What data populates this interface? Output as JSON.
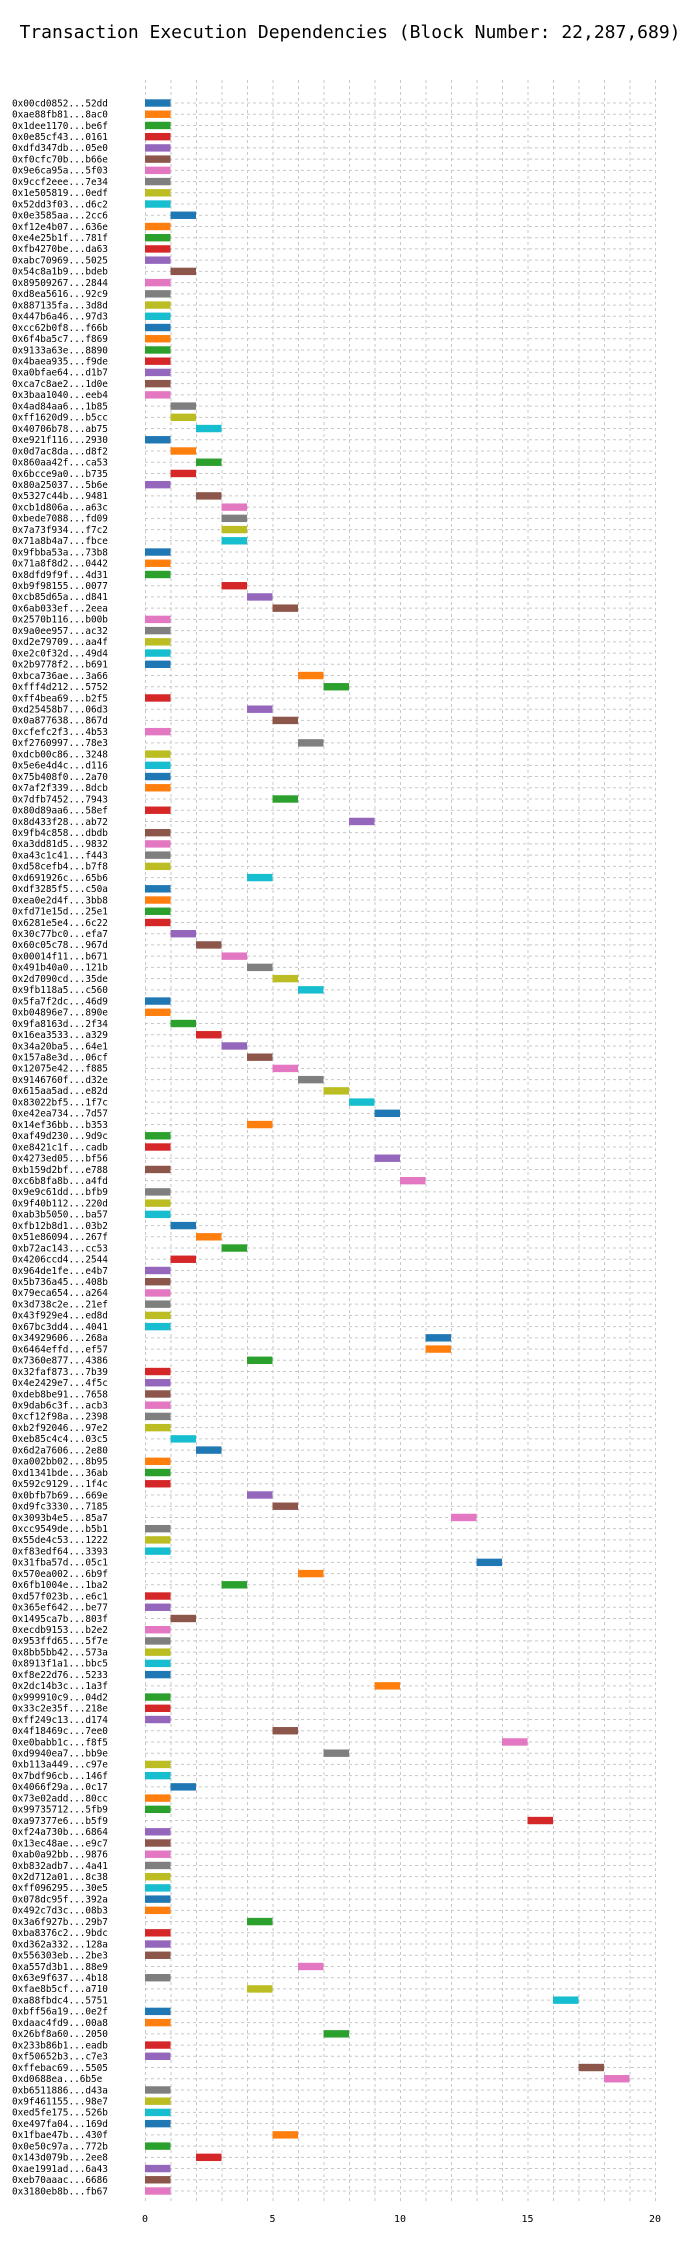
{
  "chart_data": {
    "type": "bar",
    "orientation": "horizontal",
    "title": "Transaction Execution Dependencies (Block Number: 22,287,689)",
    "xlabel": "",
    "ylabel": "",
    "xlim": [
      0,
      20
    ],
    "xticks": [
      "0",
      "5",
      "10",
      "15",
      "20"
    ],
    "grid": true,
    "legend": "none",
    "colors": [
      "#1f77b4",
      "#ff7f0e",
      "#2ca02c",
      "#d62728",
      "#9467bd",
      "#8c564b",
      "#e377c2",
      "#7f7f7f",
      "#bcbd22",
      "#17becf"
    ],
    "bars": [
      {
        "label": "0x00cd0852...52dd",
        "start": 0,
        "end": 1
      },
      {
        "label": "0xae88fb81...8ac0",
        "start": 0,
        "end": 1
      },
      {
        "label": "0x1dee1170...be6f",
        "start": 0,
        "end": 1
      },
      {
        "label": "0x0e85cf43...0161",
        "start": 0,
        "end": 1
      },
      {
        "label": "0xdfd347db...05e0",
        "start": 0,
        "end": 1
      },
      {
        "label": "0xf0cfc70b...b66e",
        "start": 0,
        "end": 1
      },
      {
        "label": "0x9e6ca95a...5f03",
        "start": 0,
        "end": 1
      },
      {
        "label": "0x9ccf2eee...7e34",
        "start": 0,
        "end": 1
      },
      {
        "label": "0x1e505819...0edf",
        "start": 0,
        "end": 1
      },
      {
        "label": "0x52dd3f03...d6c2",
        "start": 0,
        "end": 1
      },
      {
        "label": "0x0e3585aa...2cc6",
        "start": 1,
        "end": 2
      },
      {
        "label": "0xf12e4b07...636e",
        "start": 0,
        "end": 1
      },
      {
        "label": "0xe4e25b1f...781f",
        "start": 0,
        "end": 1
      },
      {
        "label": "0xfb4270be...da63",
        "start": 0,
        "end": 1
      },
      {
        "label": "0xabc70969...5025",
        "start": 0,
        "end": 1
      },
      {
        "label": "0x54c8a1b9...bdeb",
        "start": 1,
        "end": 2
      },
      {
        "label": "0x89509267...2844",
        "start": 0,
        "end": 1
      },
      {
        "label": "0xd8ea5616...92c9",
        "start": 0,
        "end": 1
      },
      {
        "label": "0x887135fa...3d8d",
        "start": 0,
        "end": 1
      },
      {
        "label": "0x447b6a46...97d3",
        "start": 0,
        "end": 1
      },
      {
        "label": "0xcc62b0f8...f66b",
        "start": 0,
        "end": 1
      },
      {
        "label": "0x6f4ba5c7...f869",
        "start": 0,
        "end": 1
      },
      {
        "label": "0x9133a63e...8890",
        "start": 0,
        "end": 1
      },
      {
        "label": "0x4baea935...f9de",
        "start": 0,
        "end": 1
      },
      {
        "label": "0xa0bfae64...d1b7",
        "start": 0,
        "end": 1
      },
      {
        "label": "0xca7c8ae2...1d0e",
        "start": 0,
        "end": 1
      },
      {
        "label": "0x3baa1040...eeb4",
        "start": 0,
        "end": 1
      },
      {
        "label": "0x4ad84aa6...1b85",
        "start": 1,
        "end": 2
      },
      {
        "label": "0xff1620d9...b5cc",
        "start": 1,
        "end": 2
      },
      {
        "label": "0x40706b78...ab75",
        "start": 2,
        "end": 3
      },
      {
        "label": "0xe921f116...2930",
        "start": 0,
        "end": 1
      },
      {
        "label": "0x0d7ac8da...d8f2",
        "start": 1,
        "end": 2
      },
      {
        "label": "0x860aa42f...ca53",
        "start": 2,
        "end": 3
      },
      {
        "label": "0x6bcce9a0...b735",
        "start": 1,
        "end": 2
      },
      {
        "label": "0x80a25037...5b6e",
        "start": 0,
        "end": 1
      },
      {
        "label": "0x5327c44b...9481",
        "start": 2,
        "end": 3
      },
      {
        "label": "0xcb1d806a...a63c",
        "start": 3,
        "end": 4
      },
      {
        "label": "0xbede7088...fd09",
        "start": 3,
        "end": 4
      },
      {
        "label": "0x7a73f934...f7c2",
        "start": 3,
        "end": 4
      },
      {
        "label": "0x71a8b4a7...fbce",
        "start": 3,
        "end": 4
      },
      {
        "label": "0x9fbba53a...73b8",
        "start": 0,
        "end": 1
      },
      {
        "label": "0x71a8f8d2...0442",
        "start": 0,
        "end": 1
      },
      {
        "label": "0x8dfd9f9f...4d31",
        "start": 0,
        "end": 1
      },
      {
        "label": "0xb9f98155...0077",
        "start": 3,
        "end": 4
      },
      {
        "label": "0xcb85d65a...d841",
        "start": 4,
        "end": 5
      },
      {
        "label": "0x6ab033ef...2eea",
        "start": 5,
        "end": 6
      },
      {
        "label": "0x2570b116...b00b",
        "start": 0,
        "end": 1
      },
      {
        "label": "0x9a0ee957...ac32",
        "start": 0,
        "end": 1
      },
      {
        "label": "0xd2e79709...aa4f",
        "start": 0,
        "end": 1
      },
      {
        "label": "0xe2c0f32d...49d4",
        "start": 0,
        "end": 1
      },
      {
        "label": "0x2b9778f2...b691",
        "start": 0,
        "end": 1
      },
      {
        "label": "0xbca736ae...3a66",
        "start": 6,
        "end": 7
      },
      {
        "label": "0xfff4d212...5752",
        "start": 7,
        "end": 8
      },
      {
        "label": "0xff4bea69...b2f5",
        "start": 0,
        "end": 1
      },
      {
        "label": "0xd25458b7...06d3",
        "start": 4,
        "end": 5
      },
      {
        "label": "0x0a877638...867d",
        "start": 5,
        "end": 6
      },
      {
        "label": "0xcfefc2f3...4b53",
        "start": 0,
        "end": 1
      },
      {
        "label": "0xf2760997...78e3",
        "start": 6,
        "end": 7
      },
      {
        "label": "0xdcb00c86...3248",
        "start": 0,
        "end": 1
      },
      {
        "label": "0x5e6e4d4c...d116",
        "start": 0,
        "end": 1
      },
      {
        "label": "0x75b408f0...2a70",
        "start": 0,
        "end": 1
      },
      {
        "label": "0x7af2f339...8dcb",
        "start": 0,
        "end": 1
      },
      {
        "label": "0x7dfb7452...7943",
        "start": 5,
        "end": 6
      },
      {
        "label": "0x80d89aa6...58ef",
        "start": 0,
        "end": 1
      },
      {
        "label": "0x8d433f28...ab72",
        "start": 8,
        "end": 9
      },
      {
        "label": "0x9fb4c858...dbdb",
        "start": 0,
        "end": 1
      },
      {
        "label": "0xa3dd81d5...9832",
        "start": 0,
        "end": 1
      },
      {
        "label": "0xa43c1c41...f443",
        "start": 0,
        "end": 1
      },
      {
        "label": "0xd58cefb4...b7f8",
        "start": 0,
        "end": 1
      },
      {
        "label": "0xd691926c...65b6",
        "start": 4,
        "end": 5
      },
      {
        "label": "0xdf3285f5...c50a",
        "start": 0,
        "end": 1
      },
      {
        "label": "0xea0e2d4f...3bb8",
        "start": 0,
        "end": 1
      },
      {
        "label": "0xfd71e15d...25e1",
        "start": 0,
        "end": 1
      },
      {
        "label": "0x6281e5e4...6c22",
        "start": 0,
        "end": 1
      },
      {
        "label": "0x30c77bc0...efa7",
        "start": 1,
        "end": 2
      },
      {
        "label": "0x60c05c78...967d",
        "start": 2,
        "end": 3
      },
      {
        "label": "0x00014f11...b671",
        "start": 3,
        "end": 4
      },
      {
        "label": "0x491b40a0...121b",
        "start": 4,
        "end": 5
      },
      {
        "label": "0x2d7090cd...35de",
        "start": 5,
        "end": 6
      },
      {
        "label": "0x9fb118a5...c560",
        "start": 6,
        "end": 7
      },
      {
        "label": "0x5fa7f2dc...46d9",
        "start": 0,
        "end": 1
      },
      {
        "label": "0xb04896e7...890e",
        "start": 0,
        "end": 1
      },
      {
        "label": "0x9fa8163d...2f34",
        "start": 1,
        "end": 2
      },
      {
        "label": "0x16ea3533...a329",
        "start": 2,
        "end": 3
      },
      {
        "label": "0x34a20ba5...64e1",
        "start": 3,
        "end": 4
      },
      {
        "label": "0x157a8e3d...06cf",
        "start": 4,
        "end": 5
      },
      {
        "label": "0x12075e42...f885",
        "start": 5,
        "end": 6
      },
      {
        "label": "0x9146760f...d32e",
        "start": 6,
        "end": 7
      },
      {
        "label": "0x615aa5ad...e82d",
        "start": 7,
        "end": 8
      },
      {
        "label": "0x83022bf5...1f7c",
        "start": 8,
        "end": 9
      },
      {
        "label": "0xe42ea734...7d57",
        "start": 9,
        "end": 10
      },
      {
        "label": "0x14ef36bb...b353",
        "start": 4,
        "end": 5
      },
      {
        "label": "0xaf49d230...9d9c",
        "start": 0,
        "end": 1
      },
      {
        "label": "0xe8421c1f...cadb",
        "start": 0,
        "end": 1
      },
      {
        "label": "0x4273ed05...bf56",
        "start": 9,
        "end": 10
      },
      {
        "label": "0xb159d2bf...e788",
        "start": 0,
        "end": 1
      },
      {
        "label": "0xc6b8fa8b...a4fd",
        "start": 10,
        "end": 11
      },
      {
        "label": "0x9e9c61dd...bfb9",
        "start": 0,
        "end": 1
      },
      {
        "label": "0x9f40b112...220d",
        "start": 0,
        "end": 1
      },
      {
        "label": "0xab3b5050...ba57",
        "start": 0,
        "end": 1
      },
      {
        "label": "0xfb12b8d1...03b2",
        "start": 1,
        "end": 2
      },
      {
        "label": "0x51e86094...267f",
        "start": 2,
        "end": 3
      },
      {
        "label": "0xb72ac143...cc53",
        "start": 3,
        "end": 4
      },
      {
        "label": "0x4206ccd4...2544",
        "start": 1,
        "end": 2
      },
      {
        "label": "0x964de1fe...e4b7",
        "start": 0,
        "end": 1
      },
      {
        "label": "0x5b736a45...408b",
        "start": 0,
        "end": 1
      },
      {
        "label": "0x79eca654...a264",
        "start": 0,
        "end": 1
      },
      {
        "label": "0x3d738c2e...21ef",
        "start": 0,
        "end": 1
      },
      {
        "label": "0x43f929e4...ed8d",
        "start": 0,
        "end": 1
      },
      {
        "label": "0x67bc3dd4...4041",
        "start": 0,
        "end": 1
      },
      {
        "label": "0x34929606...268a",
        "start": 11,
        "end": 12
      },
      {
        "label": "0x6464effd...ef57",
        "start": 11,
        "end": 12
      },
      {
        "label": "0x7360e877...4386",
        "start": 4,
        "end": 5
      },
      {
        "label": "0x32faf873...7b39",
        "start": 0,
        "end": 1
      },
      {
        "label": "0x4e2429e7...4f5c",
        "start": 0,
        "end": 1
      },
      {
        "label": "0xdeb8be91...7658",
        "start": 0,
        "end": 1
      },
      {
        "label": "0x9dab6c3f...acb3",
        "start": 0,
        "end": 1
      },
      {
        "label": "0xcf12f98a...2398",
        "start": 0,
        "end": 1
      },
      {
        "label": "0xb2f92046...97e2",
        "start": 0,
        "end": 1
      },
      {
        "label": "0xeb85c4c4...03c5",
        "start": 1,
        "end": 2
      },
      {
        "label": "0x6d2a7606...2e80",
        "start": 2,
        "end": 3
      },
      {
        "label": "0xa002bb02...8b95",
        "start": 0,
        "end": 1
      },
      {
        "label": "0xd1341bde...36ab",
        "start": 0,
        "end": 1
      },
      {
        "label": "0x592c9129...1f4c",
        "start": 0,
        "end": 1
      },
      {
        "label": "0x0bfb7b69...669e",
        "start": 4,
        "end": 5
      },
      {
        "label": "0xd9fc3330...7185",
        "start": 5,
        "end": 6
      },
      {
        "label": "0x3093b4e5...85a7",
        "start": 12,
        "end": 13
      },
      {
        "label": "0xcc9549de...b5b1",
        "start": 0,
        "end": 1
      },
      {
        "label": "0x55de4c53...1222",
        "start": 0,
        "end": 1
      },
      {
        "label": "0xf83edf64...3393",
        "start": 0,
        "end": 1
      },
      {
        "label": "0x31fba57d...05c1",
        "start": 13,
        "end": 14
      },
      {
        "label": "0x570ea002...6b9f",
        "start": 6,
        "end": 7
      },
      {
        "label": "0x6fb1004e...1ba2",
        "start": 3,
        "end": 4
      },
      {
        "label": "0xd57f023b...e6c1",
        "start": 0,
        "end": 1
      },
      {
        "label": "0x365ef642...be77",
        "start": 0,
        "end": 1
      },
      {
        "label": "0x1495ca7b...803f",
        "start": 1,
        "end": 2
      },
      {
        "label": "0xecdb9153...b2e2",
        "start": 0,
        "end": 1
      },
      {
        "label": "0x953ffd65...5f7e",
        "start": 0,
        "end": 1
      },
      {
        "label": "0x8bb5bb42...573a",
        "start": 0,
        "end": 1
      },
      {
        "label": "0x8913f1a1...bbc5",
        "start": 0,
        "end": 1
      },
      {
        "label": "0xf8e22d76...5233",
        "start": 0,
        "end": 1
      },
      {
        "label": "0x2dc14b3c...1a3f",
        "start": 9,
        "end": 10
      },
      {
        "label": "0x999910c9...04d2",
        "start": 0,
        "end": 1
      },
      {
        "label": "0x33c2e35f...218e",
        "start": 0,
        "end": 1
      },
      {
        "label": "0xff249c13...d174",
        "start": 0,
        "end": 1
      },
      {
        "label": "0x4f18469c...7ee0",
        "start": 5,
        "end": 6
      },
      {
        "label": "0xe0babb1c...f8f5",
        "start": 14,
        "end": 15
      },
      {
        "label": "0xd9940ea7...bb9e",
        "start": 7,
        "end": 8
      },
      {
        "label": "0xb113a449...c97e",
        "start": 0,
        "end": 1
      },
      {
        "label": "0x7bdf96cb...146f",
        "start": 0,
        "end": 1
      },
      {
        "label": "0x4066f29a...0c17",
        "start": 1,
        "end": 2
      },
      {
        "label": "0x73e02add...80cc",
        "start": 0,
        "end": 1
      },
      {
        "label": "0x99735712...5fb9",
        "start": 0,
        "end": 1
      },
      {
        "label": "0xa97377e6...b5f9",
        "start": 15,
        "end": 16
      },
      {
        "label": "0xf24a730b...6864",
        "start": 0,
        "end": 1
      },
      {
        "label": "0x13ec48ae...e9c7",
        "start": 0,
        "end": 1
      },
      {
        "label": "0xab0a92bb...9876",
        "start": 0,
        "end": 1
      },
      {
        "label": "0xb832adb7...4a41",
        "start": 0,
        "end": 1
      },
      {
        "label": "0x2d712a01...8c38",
        "start": 0,
        "end": 1
      },
      {
        "label": "0xff096295...30e5",
        "start": 0,
        "end": 1
      },
      {
        "label": "0x078dc95f...392a",
        "start": 0,
        "end": 1
      },
      {
        "label": "0x492c7d3c...08b3",
        "start": 0,
        "end": 1
      },
      {
        "label": "0x3a6f927b...29b7",
        "start": 4,
        "end": 5
      },
      {
        "label": "0xba8376c2...9bdc",
        "start": 0,
        "end": 1
      },
      {
        "label": "0xd362a332...128a",
        "start": 0,
        "end": 1
      },
      {
        "label": "0x556303eb...2be3",
        "start": 0,
        "end": 1
      },
      {
        "label": "0xa557d3b1...88e9",
        "start": 6,
        "end": 7
      },
      {
        "label": "0x63e9f637...4b18",
        "start": 0,
        "end": 1
      },
      {
        "label": "0xfae8b5cf...a710",
        "start": 4,
        "end": 5
      },
      {
        "label": "0xa88fbdc4...5751",
        "start": 16,
        "end": 17
      },
      {
        "label": "0xbff56a19...0e2f",
        "start": 0,
        "end": 1
      },
      {
        "label": "0xdaac4fd9...00a8",
        "start": 0,
        "end": 1
      },
      {
        "label": "0x26bf8a60...2050",
        "start": 7,
        "end": 8
      },
      {
        "label": "0x233b86b1...eadb",
        "start": 0,
        "end": 1
      },
      {
        "label": "0xf50652b3...c7e3",
        "start": 0,
        "end": 1
      },
      {
        "label": "0xffebac69...5505",
        "start": 17,
        "end": 18
      },
      {
        "label": "0xd0688ea...6b5e",
        "start": 18,
        "end": 19
      },
      {
        "label": "0xb6511886...d43a",
        "start": 0,
        "end": 1
      },
      {
        "label": "0x9f461155...98e7",
        "start": 0,
        "end": 1
      },
      {
        "label": "0xed5fe175...526b",
        "start": 0,
        "end": 1
      },
      {
        "label": "0xe497fa04...169d",
        "start": 0,
        "end": 1
      },
      {
        "label": "0x1fbae47b...430f",
        "start": 5,
        "end": 6
      },
      {
        "label": "0x0e50c97a...772b",
        "start": 0,
        "end": 1
      },
      {
        "label": "0x143d079b...2ee8",
        "start": 2,
        "end": 3
      },
      {
        "label": "0xae1991ad...6a43",
        "start": 0,
        "end": 1
      },
      {
        "label": "0xeb70aaac...6686",
        "start": 0,
        "end": 1
      },
      {
        "label": "0x3180eb8b...fb67",
        "start": 0,
        "end": 1
      }
    ]
  }
}
